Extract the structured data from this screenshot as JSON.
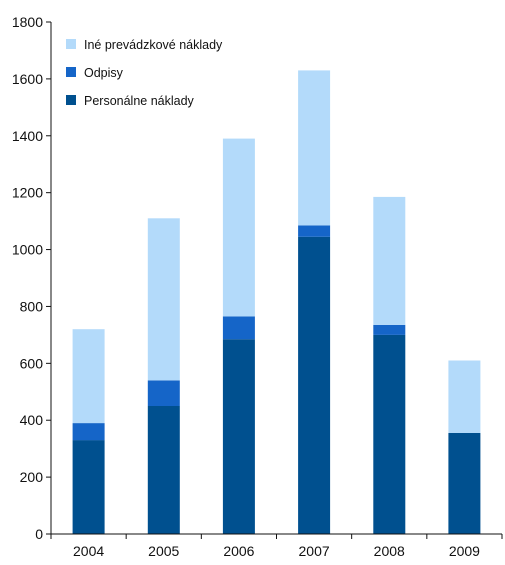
{
  "chart_data": {
    "type": "bar",
    "stacked": true,
    "categories": [
      "2004",
      "2005",
      "2006",
      "2007",
      "2008",
      "2009"
    ],
    "series": [
      {
        "name": "Personálne náklady",
        "color": "#00508f",
        "values": [
          330,
          450,
          685,
          1045,
          700,
          355
        ]
      },
      {
        "name": "Odpisy",
        "color": "#1565c8",
        "values": [
          60,
          90,
          80,
          40,
          35,
          0
        ]
      },
      {
        "name": "Iné prevádzkové náklady",
        "color": "#b3dafa",
        "values": [
          330,
          570,
          625,
          545,
          450,
          255
        ]
      }
    ],
    "legend_order": [
      "Iné prevádzkové náklady",
      "Odpisy",
      "Personálne náklady"
    ],
    "ylim": [
      0,
      1800
    ],
    "yticks": [
      0,
      200,
      400,
      600,
      800,
      1000,
      1200,
      1400,
      1600,
      1800
    ],
    "grid": false,
    "legend_position": "top-left",
    "title": "",
    "xlabel": "",
    "ylabel": ""
  }
}
